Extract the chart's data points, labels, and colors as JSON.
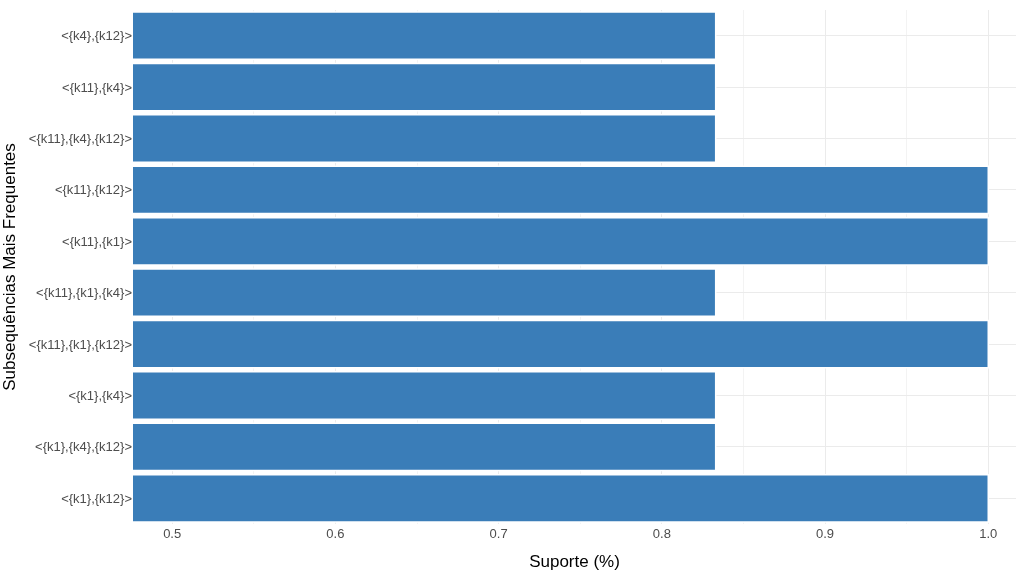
{
  "chart_data": {
    "type": "bar",
    "orientation": "horizontal",
    "xlabel": "Suporte (%)",
    "ylabel": "Subsequências Mais Frequentes",
    "categories": [
      "<{k4},{k12}>",
      "<{k11},{k4}>",
      "<{k11},{k4},{k12}>",
      "<{k11},{k12}>",
      "<{k11},{k1}>",
      "<{k11},{k1},{k4}>",
      "<{k11},{k1},{k12}>",
      "<{k1},{k4}>",
      "<{k1},{k4},{k12}>",
      "<{k1},{k12}>"
    ],
    "values": [
      0.833,
      0.833,
      0.833,
      1.0,
      1.0,
      0.833,
      1.0,
      0.833,
      0.833,
      1.0
    ],
    "color": "#3a7db8",
    "xlim": [
      0.476,
      1.017
    ],
    "xticks": [
      0.5,
      0.6,
      0.7,
      0.8,
      0.9,
      {
        "value": 1,
        "label": "1.0"
      }
    ],
    "grid": true
  }
}
